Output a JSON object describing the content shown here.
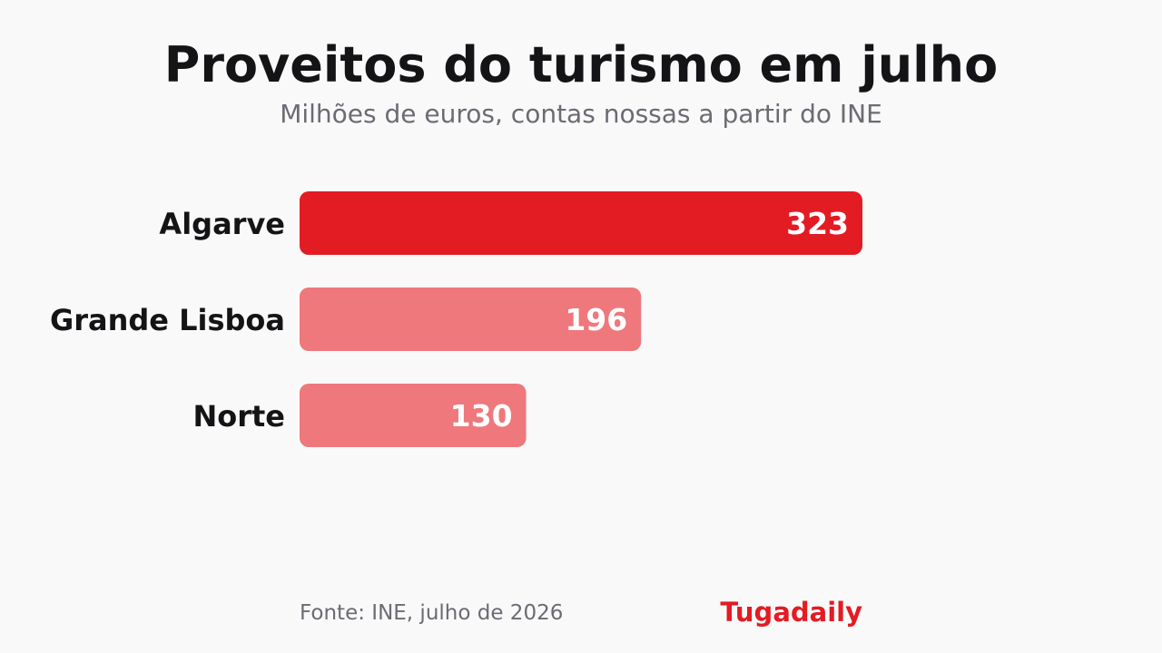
{
  "header": {
    "title": "Proveitos do turismo em julho",
    "subtitle": "Milhões de euros, contas nossas a partir do INE"
  },
  "footer": {
    "source": "Fonte: INE, julho de 2026",
    "brand": "Tugadaily"
  },
  "colors": {
    "highlight": "#e31b23",
    "muted": "#ee787c",
    "brand": "#e31b23",
    "background": "#f9f9f9"
  },
  "chart_data": {
    "type": "bar",
    "orientation": "horizontal",
    "categories": [
      "Algarve",
      "Grande Lisboa",
      "Norte"
    ],
    "values": [
      323,
      196,
      130
    ],
    "highlight_index": 0,
    "xlim": [
      0,
      323
    ],
    "grid": false,
    "legend": "none"
  }
}
